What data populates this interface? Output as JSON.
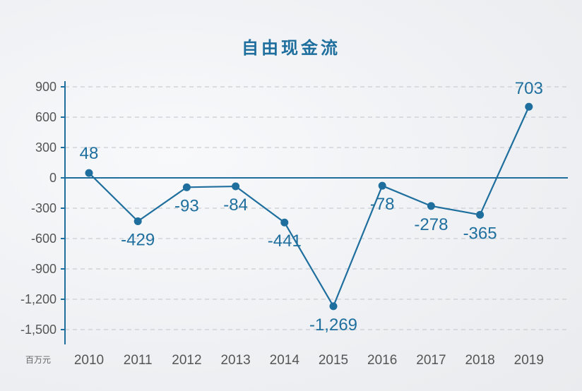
{
  "chart_data": {
    "type": "line",
    "title": "自由现金流",
    "unit_label": "百万元",
    "x": [
      "2010",
      "2011",
      "2012",
      "2013",
      "2014",
      "2015",
      "2016",
      "2017",
      "2018",
      "2019"
    ],
    "series": [
      {
        "values": [
          48,
          -429,
          -93,
          -84,
          -441,
          -1269,
          -78,
          -278,
          -365,
          703
        ]
      }
    ],
    "data_labels": [
      "48",
      "-429",
      "-93",
      "-84",
      "-441",
      "-1,269",
      "-78",
      "-278",
      "-365",
      "703"
    ],
    "y_ticks": [
      900,
      600,
      300,
      0,
      -300,
      -600,
      -900,
      -1200,
      -1500
    ],
    "y_tick_labels": [
      "900",
      "600",
      "300",
      "0",
      "-300",
      "-600",
      "-900",
      "-1,200",
      "-1,500"
    ],
    "ylim": [
      -1500,
      900
    ],
    "grid": true,
    "colors": {
      "line": "#1f6f9e",
      "axis": "#1f6f9e",
      "grid": "#c9cdd2",
      "text": "#555555"
    }
  }
}
